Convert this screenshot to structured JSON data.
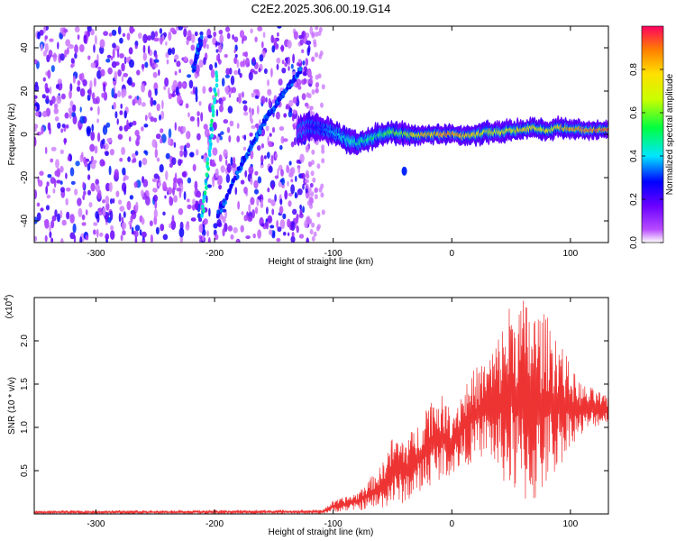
{
  "title": "C2E2.2025.306.00.19.G14",
  "chart_data": [
    {
      "type": "heatmap",
      "title": "C2E2.2025.306.00.19.G14",
      "xlabel": "Height of straight line (km)",
      "ylabel": "Frequency (Hz)",
      "xlim": [
        -352,
        132
      ],
      "ylim": [
        -50,
        50
      ],
      "xticks": [
        -300,
        -200,
        -100,
        0,
        100
      ],
      "xtick_labels": [
        "-300",
        "-200",
        "-100",
        "0",
        "100"
      ],
      "yticks": [
        -40,
        -20,
        0,
        20,
        40
      ],
      "ytick_labels": [
        "-40",
        "-20",
        "0",
        "20",
        "40"
      ],
      "noise_region_x": [
        -352,
        -118
      ],
      "features": [
        {
          "name": "steep-streak",
          "type": "segment",
          "points": [
            [
              -210,
              -38
            ],
            [
              -198,
              28
            ]
          ],
          "amplitude": 0.42
        },
        {
          "name": "steep-streak-upper",
          "type": "segment",
          "points": [
            [
              -218,
              30
            ],
            [
              -211,
              45
            ]
          ],
          "amplitude": 0.3
        },
        {
          "name": "slanted-streak",
          "type": "segment",
          "points": [
            [
              -198,
              -38
            ],
            [
              -175,
              -12
            ],
            [
              -158,
              6
            ],
            [
              -143,
              18
            ],
            [
              -127,
              30
            ]
          ],
          "amplitude": 0.3
        }
      ],
      "main_signal": {
        "name": "main-trace",
        "x": [
          -130,
          -120,
          -110,
          -100,
          -90,
          -80,
          -70,
          -60,
          -50,
          -40,
          -30,
          -20,
          -10,
          0,
          10,
          20,
          30,
          40,
          50,
          60,
          70,
          80,
          90,
          100,
          110,
          120,
          132
        ],
        "y": [
          1,
          4,
          3,
          1,
          -2,
          -4,
          -2,
          0,
          1,
          0,
          -1,
          0,
          0,
          0,
          -1,
          0,
          1,
          1,
          2,
          2,
          3,
          2,
          3,
          3,
          2,
          2,
          2
        ],
        "peak_amplitude": [
          0.15,
          0.25,
          0.35,
          0.45,
          0.5,
          0.55,
          0.55,
          0.6,
          0.65,
          0.7,
          0.85,
          0.9,
          0.95,
          0.95,
          0.9,
          0.85,
          0.75,
          0.8,
          0.8,
          0.85,
          0.8,
          0.8,
          0.85,
          0.9,
          0.95,
          0.97,
          0.97
        ]
      },
      "side_blob": {
        "x": -40,
        "y": -17,
        "amplitude": 0.3
      },
      "colorbar": {
        "label": "Normalized spectral amplitude",
        "range": [
          0.0,
          1.0
        ],
        "ticks": [
          0.0,
          0.2,
          0.4,
          0.6,
          0.8
        ],
        "tick_labels": [
          "0.0",
          "0.2",
          "0.4",
          "0.6",
          "0.8"
        ]
      }
    },
    {
      "type": "line",
      "xlabel": "Height of straight line (km)",
      "ylabel": "SNR (10 * v/v)",
      "y_multiplier": "(x10",
      "y_multiplier_exp": "4",
      "y_multiplier_close": ")",
      "xlim": [
        -352,
        132
      ],
      "ylim": [
        0,
        2.5
      ],
      "xticks": [
        -300,
        -200,
        -100,
        0,
        100
      ],
      "xtick_labels": [
        "-300",
        "-200",
        "-100",
        "0",
        "100"
      ],
      "yticks": [
        0.5,
        1.0,
        1.5,
        2.0
      ],
      "ytick_labels": [
        "0.5",
        "1.0",
        "1.5",
        "2.0"
      ],
      "color": "#ee3333",
      "series": [
        {
          "name": "SNR",
          "envelope": {
            "x": [
              -352,
              -110,
              -100,
              -90,
              -80,
              -70,
              -60,
              -50,
              -40,
              -30,
              -20,
              -10,
              0,
              10,
              20,
              30,
              40,
              50,
              60,
              70,
              80,
              90,
              100,
              110,
              120,
              132
            ],
            "low": [
              0.0,
              0.0,
              0.02,
              0.03,
              0.04,
              0.05,
              0.06,
              0.1,
              0.12,
              0.2,
              0.3,
              0.4,
              0.45,
              0.55,
              0.6,
              0.7,
              0.4,
              0.25,
              0.1,
              0.1,
              0.3,
              0.5,
              0.8,
              0.9,
              1.0,
              1.05
            ],
            "high": [
              0.04,
              0.05,
              0.15,
              0.2,
              0.25,
              0.4,
              0.55,
              0.9,
              0.9,
              1.0,
              1.35,
              1.4,
              1.2,
              1.5,
              1.7,
              1.8,
              2.1,
              2.5,
              2.5,
              2.4,
              2.3,
              2.1,
              1.7,
              1.5,
              1.45,
              1.35
            ]
          }
        }
      ]
    }
  ]
}
